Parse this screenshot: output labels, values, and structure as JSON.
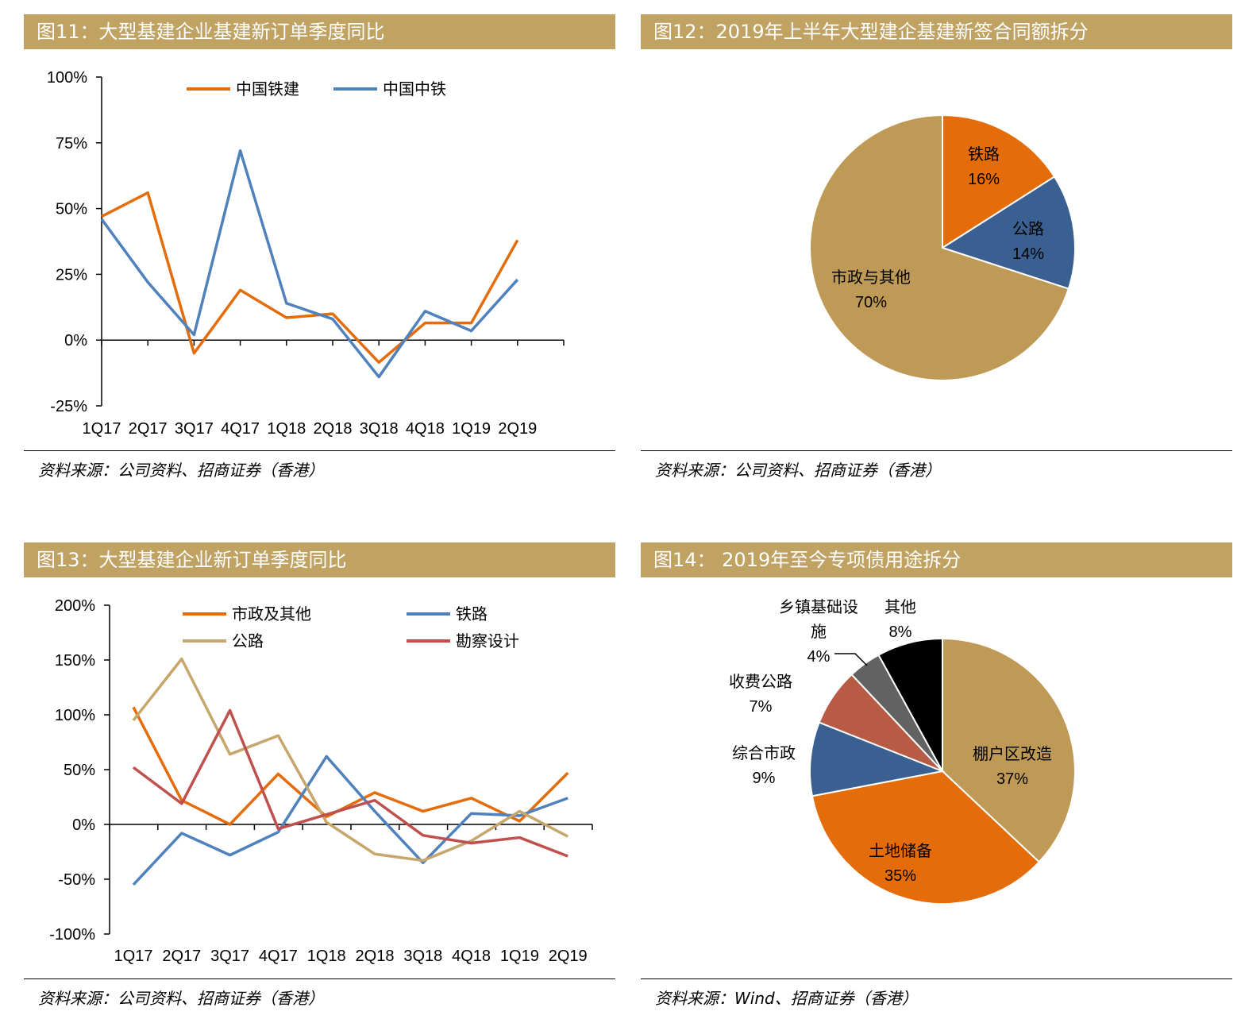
{
  "panels": {
    "p11": {
      "title": "图11：大型基建企业基建新订单季度同比",
      "source": "资料来源：公司资料、招商证券（香港）"
    },
    "p12": {
      "title": "图12：2019年上半年大型建企基建新签合同额拆分",
      "source": "资料来源：公司资料、招商证券（香港）"
    },
    "p13": {
      "title": "图13：大型基建企业新订单季度同比",
      "source": "资料来源：公司资料、招商证券（香港）"
    },
    "p14": {
      "title": "图14：   2019年至今专项债用途拆分",
      "source": "资料来源：Wind、招商证券（香港）"
    }
  },
  "chart_data": [
    {
      "id": "fig11",
      "type": "line",
      "categories": [
        "1Q17",
        "2Q17",
        "3Q17",
        "4Q17",
        "1Q18",
        "2Q18",
        "3Q18",
        "4Q18",
        "1Q19",
        "2Q19"
      ],
      "ylim": [
        -25,
        100
      ],
      "yticks": [
        "100%",
        "75%",
        "50%",
        "25%",
        "0%",
        "-25%"
      ],
      "series": [
        {
          "name": "中国铁建",
          "color": "#E46C0A",
          "values": [
            47,
            56,
            -5,
            19,
            8.5,
            10,
            -8.5,
            6.5,
            6.5,
            38
          ]
        },
        {
          "name": "中国中铁",
          "color": "#4F81BD",
          "values": [
            46,
            22,
            2,
            72,
            14,
            8,
            -14,
            11,
            3.5,
            23
          ]
        }
      ]
    },
    {
      "id": "fig12",
      "type": "pie",
      "slices": [
        {
          "name": "铁路",
          "label": "16%",
          "value": 16,
          "color": "#E46C0A"
        },
        {
          "name": "公路",
          "label": "14%",
          "value": 14,
          "color": "#3A5F91"
        },
        {
          "name": "市政与其他",
          "label": "70%",
          "value": 70,
          "color": "#BF9A56"
        }
      ]
    },
    {
      "id": "fig13",
      "type": "line",
      "categories": [
        "1Q17",
        "2Q17",
        "3Q17",
        "4Q17",
        "1Q18",
        "2Q18",
        "3Q18",
        "4Q18",
        "1Q19",
        "2Q19"
      ],
      "ylim": [
        -100,
        200
      ],
      "yticks": [
        "200%",
        "150%",
        "100%",
        "50%",
        "0%",
        "-50%",
        "-100%"
      ],
      "series": [
        {
          "name": "市政及其他",
          "color": "#E46C0A",
          "values": [
            107,
            22,
            0,
            46,
            7,
            29,
            12,
            24,
            3,
            47
          ]
        },
        {
          "name": "铁路",
          "color": "#4F81BD",
          "values": [
            -55,
            -8,
            -28,
            -7,
            62,
            12,
            -35,
            10,
            8,
            24
          ]
        },
        {
          "name": "公路",
          "color": "#C6A66A",
          "values": [
            95,
            151,
            64,
            81,
            2,
            -27,
            -33,
            -15,
            12,
            -11
          ]
        },
        {
          "name": "勘察设计",
          "color": "#C0504D",
          "values": [
            52,
            19,
            104,
            -4,
            9,
            22,
            -10,
            -17,
            -12,
            -29
          ]
        }
      ]
    },
    {
      "id": "fig14",
      "type": "pie",
      "slices": [
        {
          "name": "棚户区改造",
          "label": "37%",
          "value": 37,
          "color": "#BF9A56"
        },
        {
          "name": "土地储备",
          "label": "35%",
          "value": 35,
          "color": "#E46C0A"
        },
        {
          "name": "综合市政",
          "label": "9%",
          "value": 9,
          "color": "#3A5F91"
        },
        {
          "name": "收费公路",
          "label": "7%",
          "value": 7,
          "color": "#B85B45"
        },
        {
          "name": "乡镇基础设施",
          "label": "4%",
          "value": 4,
          "color": "#626262"
        },
        {
          "name": "其他",
          "label": "8%",
          "value": 8,
          "color": "#000000"
        }
      ]
    }
  ]
}
